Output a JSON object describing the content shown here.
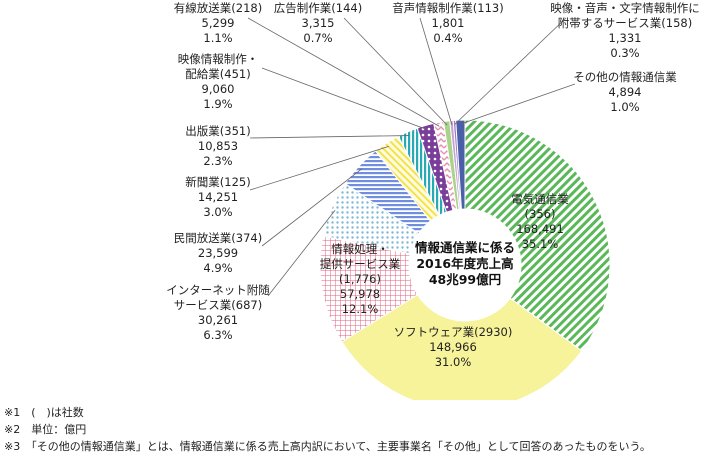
{
  "chart_data": {
    "type": "donut",
    "center_label": [
      "情報通信業に係る",
      "2016年度売上高",
      "48兆99億円"
    ],
    "series": [
      {
        "name": "電気通信業",
        "count": "(356)",
        "value": 168491,
        "value_text": "168,491",
        "percent": "35.1%",
        "color": "#5bb85a",
        "pattern": "diagonal-stripes"
      },
      {
        "name": "ソフトウェア業(2930)",
        "value": 148966,
        "value_text": "148,966",
        "percent": "31.0%",
        "color": "#f6f39a",
        "pattern": "solid"
      },
      {
        "name": "情報処理・提供サービス業",
        "count": "(1,776)",
        "value": 57978,
        "value_text": "57,978",
        "percent": "12.1%",
        "color": "#e0607d",
        "pattern": "grid"
      },
      {
        "name": "インターネット附随サービス業(687)",
        "value": 30261,
        "value_text": "30,261",
        "percent": "6.3%",
        "color": "#d7ecf5",
        "pattern": "dots"
      },
      {
        "name": "民間放送業(374)",
        "value": 23599,
        "value_text": "23,599",
        "percent": "4.9%",
        "color": "#6f8fde",
        "pattern": "horizontal-stripes"
      },
      {
        "name": "新聞業(125)",
        "value": 14251,
        "value_text": "14,251",
        "percent": "3.0%",
        "color": "#f3e34a",
        "pattern": "diagonal-lines"
      },
      {
        "name": "出版業(351)",
        "value": 10853,
        "value_text": "10,853",
        "percent": "2.3%",
        "color": "#28aab3",
        "pattern": "vertical-stripes"
      },
      {
        "name": "映像情報制作・配給業(451)",
        "value": 9060,
        "value_text": "9,060",
        "percent": "1.9%",
        "color": "#7a3e9a",
        "pattern": "dots"
      },
      {
        "name": "有線放送業(218)",
        "value": 5299,
        "value_text": "5,299",
        "percent": "1.1%",
        "color": "#e58fb0",
        "pattern": "zigzag"
      },
      {
        "name": "広告制作業(144)",
        "value": 3315,
        "value_text": "3,315",
        "percent": "0.7%",
        "color": "#a8d48a",
        "pattern": "solid"
      },
      {
        "name": "音声情報制作業(113)",
        "value": 1801,
        "value_text": "1,801",
        "percent": "0.4%",
        "color": "#c7a0d6",
        "pattern": "solid"
      },
      {
        "name": "映像・音声・文字情報制作に附帯するサービス業(158)",
        "value": 1331,
        "value_text": "1,331",
        "percent": "0.3%",
        "color": "#9c7cc4",
        "pattern": "solid"
      },
      {
        "name": "その他の情報通信業",
        "value": 4894,
        "value_text": "4,894",
        "percent": "1.0%",
        "color": "#4a5fa8",
        "pattern": "solid"
      }
    ],
    "labels": {
      "denki": [
        "電気通信業",
        "(356)",
        "168,491",
        "35.1%"
      ],
      "software": [
        "ソフトウェア業(2930)",
        "148,966",
        "31.0%"
      ],
      "joho": [
        "情報処理・",
        "提供サービス業",
        "(1,776)",
        "57,978",
        "12.1%"
      ],
      "internet": [
        "インターネット附随",
        "サービス業(687)",
        "30,261",
        "6.3%"
      ],
      "minkan": [
        "民間放送業(374)",
        "23,599",
        "4.9%"
      ],
      "shinbun": [
        "新聞業(125)",
        "14,251",
        "3.0%"
      ],
      "shuppan": [
        "出版業(351)",
        "10,853",
        "2.3%"
      ],
      "eizo": [
        "映像情報制作・",
        "配給業(451)",
        "9,060",
        "1.9%"
      ],
      "yusen": [
        "有線放送業(218)",
        "5,299",
        "1.1%"
      ],
      "kokoku": [
        "広告制作業(144)",
        "3,315",
        "0.7%"
      ],
      "onsei": [
        "音声情報制作業(113)",
        "1,801",
        "0.4%"
      ],
      "futai": [
        "映像・音声・文字情報制作に",
        "附帯するサービス業(158)",
        "1,331",
        "0.3%"
      ],
      "sonota": [
        "その他の情報通信業",
        "4,894",
        "1.0%"
      ]
    }
  },
  "notes": [
    "※1　(　)は社数",
    "※2　単位：億円",
    "※3　「その他の情報通信業」とは、情報通信業に係る売上高内訳において、主要事業名「その他」として回答のあったものをいう。"
  ]
}
